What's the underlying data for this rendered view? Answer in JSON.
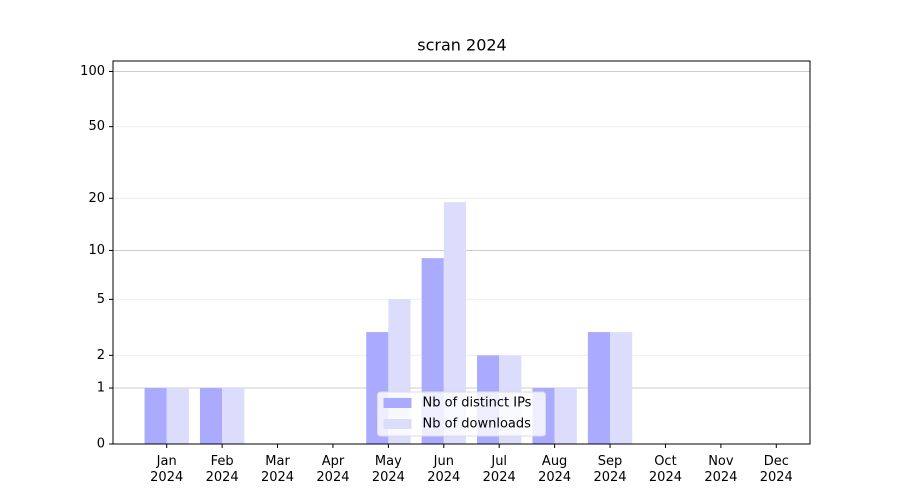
{
  "chart_data": {
    "type": "bar",
    "title": "scran 2024",
    "categories": [
      "Jan\n2024",
      "Feb\n2024",
      "Mar\n2024",
      "Apr\n2024",
      "May\n2024",
      "Jun\n2024",
      "Jul\n2024",
      "Aug\n2024",
      "Sep\n2024",
      "Oct\n2024",
      "Nov\n2024",
      "Dec\n2024"
    ],
    "series": [
      {
        "name": "Nb of distinct IPs",
        "color": "#aaaaff",
        "values": [
          1,
          1,
          0,
          0,
          3,
          9,
          2,
          1,
          3,
          0,
          0,
          0
        ]
      },
      {
        "name": "Nb of downloads",
        "color": "#dcdcfc",
        "values": [
          1,
          1,
          0,
          0,
          5,
          19,
          2,
          1,
          3,
          0,
          0,
          0
        ]
      }
    ],
    "yscale": "log1p",
    "ylim": [
      0,
      114
    ],
    "yticks": [
      0,
      1,
      2,
      5,
      10,
      20,
      50,
      100
    ],
    "grid": true,
    "legend": "lower center"
  }
}
